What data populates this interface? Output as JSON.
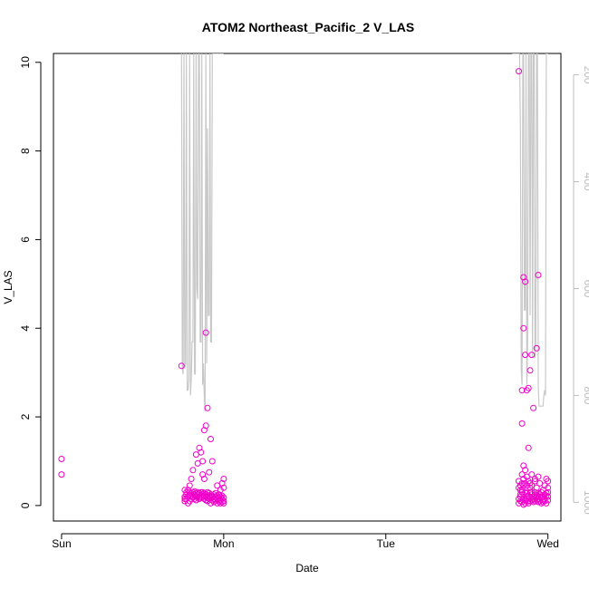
{
  "chart_data": {
    "type": "scatter",
    "title": "ATOM2 Northeast_Pacific_2 V_LAS",
    "xlabel": "Date",
    "ylabel": "V_LAS",
    "x_ticks": [
      "Sun",
      "Mon",
      "Tue",
      "Wed"
    ],
    "x_range_days": [
      -0.05,
      3.08
    ],
    "ylim": [
      -0.35,
      10.2
    ],
    "y_ticks": [
      0,
      2,
      4,
      6,
      8,
      10
    ],
    "y2_ticks": [
      200,
      400,
      600,
      800,
      1000
    ],
    "y2lim": [
      1035,
      160
    ],
    "grid": false,
    "colors": {
      "points": "#f000c8",
      "depth_line": "#c8c8c8",
      "axis": "#000000",
      "y2_axis": "#bdbdbd"
    },
    "series": [
      {
        "kind": "points",
        "x": [
          0.0,
          0.0,
          0.76,
          0.76,
          0.76,
          0.77,
          0.77,
          0.77,
          0.78,
          0.78,
          0.78,
          0.79,
          0.79,
          0.79,
          0.8,
          0.8,
          0.8,
          0.81,
          0.81,
          0.81,
          0.82,
          0.82,
          0.82,
          0.83,
          0.83,
          0.83,
          0.84,
          0.84,
          0.84,
          0.85,
          0.85,
          0.85,
          0.86,
          0.86,
          0.86,
          0.87,
          0.87,
          0.87,
          0.88,
          0.88,
          0.88,
          0.89,
          0.89,
          0.89,
          0.9,
          0.9,
          0.9,
          0.91,
          0.91,
          0.91,
          0.92,
          0.92,
          0.92,
          0.93,
          0.93,
          0.93,
          0.94,
          0.94,
          0.94,
          0.95,
          0.95,
          0.95,
          0.96,
          0.96,
          0.96,
          0.97,
          0.97,
          0.97,
          0.98,
          0.98,
          0.98,
          0.99,
          0.99,
          0.99,
          1.0,
          1.0,
          1.0,
          0.74,
          0.76,
          0.79,
          0.8,
          0.81,
          0.83,
          0.84,
          0.85,
          0.86,
          0.87,
          0.87,
          0.88,
          0.88,
          0.89,
          0.89,
          0.9,
          0.91,
          0.92,
          0.93,
          0.96,
          0.98,
          0.99,
          1.0,
          1.0,
          2.82,
          2.82,
          2.83,
          2.83,
          2.83,
          2.84,
          2.84,
          2.84,
          2.85,
          2.85,
          2.85,
          2.86,
          2.86,
          2.86,
          2.87,
          2.87,
          2.87,
          2.88,
          2.88,
          2.88,
          2.89,
          2.89,
          2.89,
          2.9,
          2.9,
          2.9,
          2.91,
          2.91,
          2.91,
          2.92,
          2.92,
          2.92,
          2.93,
          2.93,
          2.93,
          2.94,
          2.94,
          2.94,
          2.95,
          2.95,
          2.95,
          2.96,
          2.96,
          2.96,
          2.97,
          2.97,
          2.97,
          2.98,
          2.98,
          2.98,
          2.99,
          2.99,
          2.99,
          3.0,
          3.0,
          3.0,
          2.82,
          2.82,
          2.83,
          2.83,
          2.84,
          2.84,
          2.85,
          2.85,
          2.85,
          2.86,
          2.86,
          2.87,
          2.87,
          2.88,
          2.88,
          2.89,
          2.89,
          2.9,
          2.9,
          2.92,
          2.92,
          2.93,
          2.94,
          2.95,
          2.97,
          2.98,
          2.99,
          3.0,
          3.0,
          2.82,
          2.84,
          2.84,
          2.85,
          2.85,
          2.86,
          2.86,
          2.87,
          2.88,
          2.89,
          2.9,
          2.91,
          2.93,
          2.94
        ],
        "y": [
          1.05,
          0.7,
          0.15,
          0.1,
          0.2,
          0.25,
          0.15,
          0.3,
          0.2,
          0.05,
          0.35,
          0.25,
          0.1,
          0.3,
          0.22,
          0.15,
          0.28,
          0.2,
          0.3,
          0.18,
          0.25,
          0.15,
          0.32,
          0.2,
          0.28,
          0.12,
          0.3,
          0.2,
          0.25,
          0.18,
          0.28,
          0.15,
          0.22,
          0.3,
          0.18,
          0.25,
          0.2,
          0.3,
          0.15,
          0.22,
          0.28,
          0.2,
          0.12,
          0.25,
          0.18,
          0.3,
          0.1,
          0.22,
          0.15,
          0.28,
          0.2,
          0.05,
          0.25,
          0.18,
          0.12,
          0.22,
          0.15,
          0.25,
          0.08,
          0.2,
          0.12,
          0.28,
          0.15,
          0.05,
          0.22,
          0.1,
          0.18,
          0.25,
          0.12,
          0.2,
          0.05,
          0.15,
          0.22,
          0.08,
          0.1,
          0.18,
          0.05,
          3.15,
          0.35,
          0.45,
          0.6,
          0.8,
          1.15,
          0.95,
          1.3,
          1.2,
          1.0,
          0.7,
          1.7,
          0.6,
          3.9,
          1.8,
          2.2,
          0.75,
          1.5,
          1.0,
          0.45,
          0.35,
          0.5,
          0.4,
          0.6,
          0.15,
          0.05,
          0.25,
          0.1,
          0.2,
          0.3,
          0.08,
          0.35,
          0.15,
          0.02,
          0.25,
          0.12,
          0.3,
          0.05,
          0.2,
          0.15,
          0.28,
          0.1,
          0.22,
          0.05,
          0.3,
          0.18,
          0.1,
          0.25,
          0.12,
          0.3,
          0.2,
          0.08,
          0.15,
          0.25,
          0.1,
          0.3,
          0.18,
          0.12,
          0.22,
          0.08,
          0.28,
          0.15,
          0.2,
          0.1,
          0.25,
          0.05,
          0.18,
          0.3,
          0.12,
          0.2,
          0.08,
          0.25,
          0.15,
          0.1,
          0.22,
          0.05,
          0.28,
          0.2,
          0.12,
          0.3,
          0.4,
          0.55,
          0.35,
          0.45,
          0.5,
          0.7,
          0.45,
          0.9,
          0.6,
          0.5,
          0.8,
          0.65,
          0.45,
          1.3,
          0.55,
          0.5,
          0.4,
          0.7,
          0.45,
          0.6,
          0.55,
          0.4,
          0.65,
          0.5,
          0.35,
          0.45,
          0.6,
          0.4,
          0.55,
          9.8,
          1.85,
          2.6,
          5.15,
          4.0,
          3.4,
          5.05,
          2.6,
          2.65,
          3.05,
          3.4,
          2.2,
          3.55,
          5.2
        ]
      },
      {
        "kind": "depth_line",
        "axis": "y2",
        "x": [
          0.74,
          0.745,
          0.75,
          0.755,
          0.76,
          0.765,
          0.77,
          0.775,
          0.78,
          0.785,
          0.79,
          0.795,
          0.8,
          0.805,
          0.81,
          0.815,
          0.82,
          0.825,
          0.83,
          0.835,
          0.84,
          0.845,
          0.85,
          0.855,
          0.86,
          0.865,
          0.87,
          0.875,
          0.88,
          0.885,
          0.89,
          0.895,
          0.9,
          0.905,
          0.91,
          0.915,
          0.92,
          0.925,
          0.93,
          0.935,
          0.94,
          0.945,
          0.95,
          0.955,
          0.96,
          0.965,
          0.97,
          0.975,
          0.98,
          0.985,
          0.99,
          0.995,
          1.0,
          null,
          2.78,
          2.785,
          2.79,
          2.795,
          2.8,
          2.805,
          2.81,
          2.815,
          2.82,
          2.825,
          2.83,
          2.835,
          2.84,
          2.845,
          2.85,
          2.855,
          2.86,
          2.865,
          2.87,
          2.875,
          2.88,
          2.885,
          2.89,
          2.895,
          2.9,
          2.905,
          2.91,
          2.915,
          2.92,
          2.925,
          2.93,
          2.935,
          2.94,
          2.945,
          2.95,
          2.955,
          2.96,
          2.965,
          2.97,
          2.975,
          2.98,
          2.985,
          2.99,
          2.995,
          3.0
        ],
        "y": [
          160,
          750,
          760,
          160,
          750,
          740,
          160,
          790,
          790,
          770,
          160,
          800,
          770,
          700,
          700,
          160,
          760,
          760,
          160,
          600,
          620,
          160,
          160,
          700,
          700,
          160,
          780,
          740,
          800,
          830,
          160,
          740,
          300,
          650,
          650,
          160,
          700,
          700,
          160,
          160,
          160,
          160,
          160,
          160,
          160,
          160,
          160,
          160,
          160,
          160,
          160,
          160,
          160,
          null,
          160,
          160,
          160,
          160,
          160,
          160,
          160,
          160,
          160,
          160,
          300,
          750,
          780,
          160,
          160,
          640,
          640,
          160,
          780,
          700,
          160,
          160,
          650,
          160,
          160,
          730,
          160,
          160,
          730,
          700,
          160,
          160,
          780,
          820,
          820,
          820,
          820,
          820,
          820,
          800,
          790,
          800,
          160,
          160,
          160
        ]
      }
    ]
  }
}
